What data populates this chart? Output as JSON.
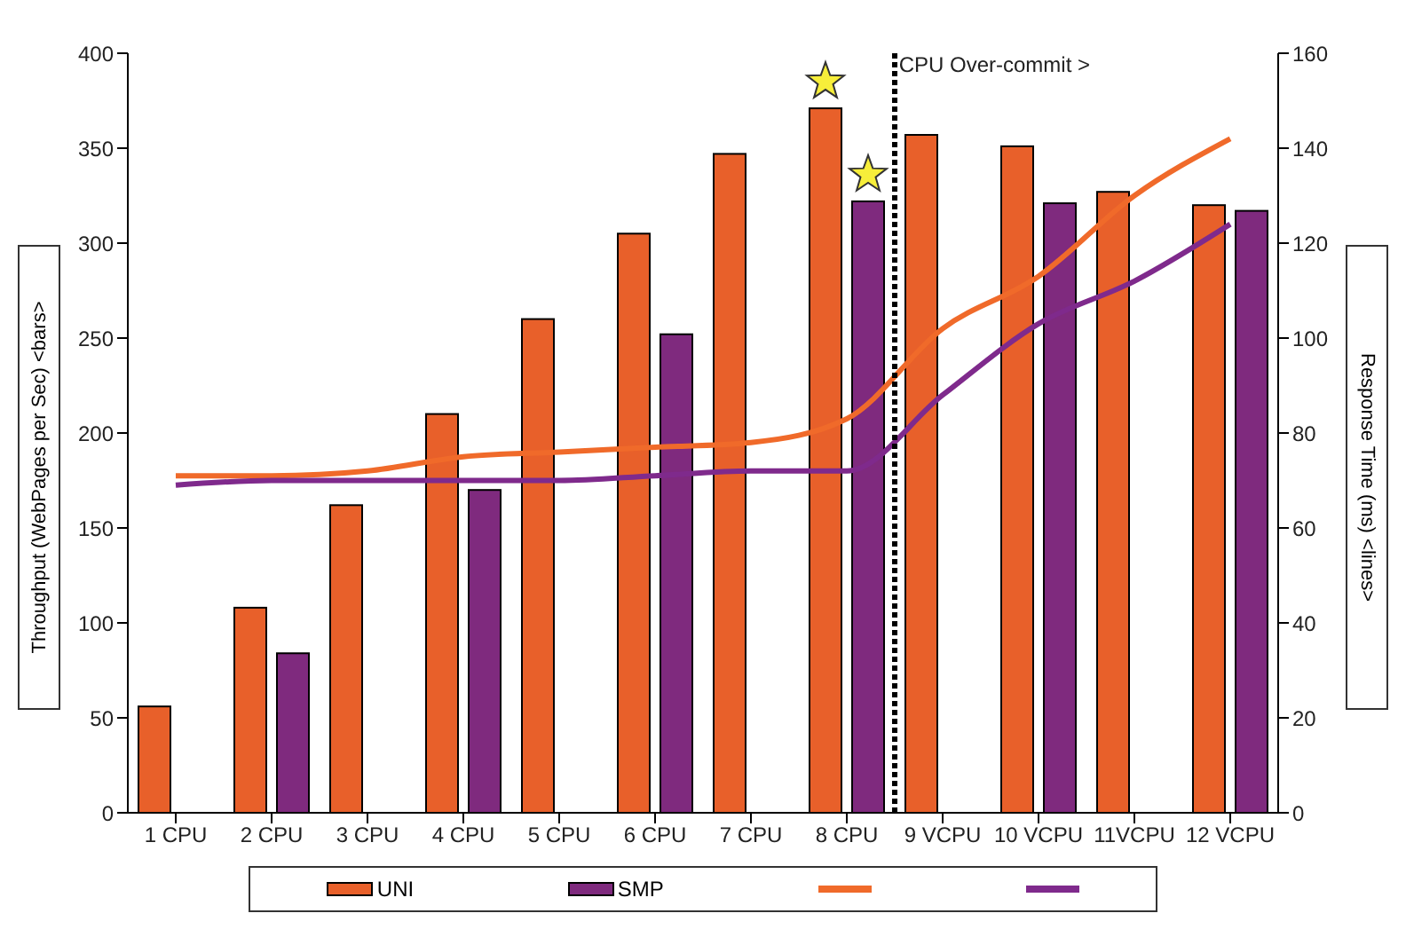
{
  "chart_data": {
    "type": "bar",
    "ylabel": "Throughput (WebPages per Sec) <bars>",
    "y2label": "Response Time (ms) <lines>",
    "categories": [
      "1 CPU",
      "2 CPU",
      "3 CPU",
      "4 CPU",
      "5 CPU",
      "6 CPU",
      "7 CPU",
      "8 CPU",
      "9 VCPU",
      "10 VCPU",
      "11VCPU",
      "12 VCPU"
    ],
    "series": [
      {
        "name": "UNI",
        "color": "#e8602a",
        "values": [
          56,
          108,
          162,
          210,
          260,
          305,
          347,
          371,
          357,
          351,
          327,
          320
        ]
      },
      {
        "name": "SMP",
        "color": "#7f2a7e",
        "values": [
          null,
          84,
          null,
          170,
          null,
          252,
          null,
          322,
          null,
          321,
          null,
          317
        ]
      },
      {
        "type": "line",
        "axis": "y2",
        "color": "#f06a2a",
        "values": [
          71,
          71,
          72,
          75,
          76,
          77,
          78,
          83,
          102,
          113,
          130,
          142
        ]
      },
      {
        "type": "line",
        "axis": "y2",
        "color": "#7f2a8c",
        "values": [
          69,
          70,
          70,
          70,
          70,
          71,
          72,
          72,
          88,
          103,
          112,
          124
        ]
      }
    ],
    "ylim": [
      0,
      400
    ],
    "yticks": [
      0,
      50,
      100,
      150,
      200,
      250,
      300,
      350,
      400
    ],
    "y2lim": [
      0,
      160
    ],
    "y2ticks": [
      0,
      20,
      40,
      60,
      80,
      100,
      120,
      140,
      160
    ],
    "annotations": [
      "CPU Over-commit >"
    ],
    "grid": false,
    "legend": "bottom"
  }
}
